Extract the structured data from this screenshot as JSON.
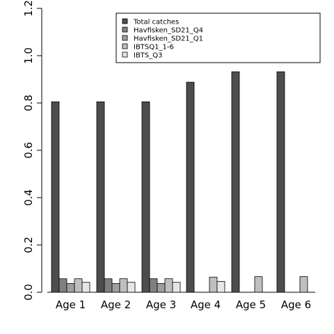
{
  "chart_data": {
    "type": "bar",
    "categories": [
      "Age 1",
      "Age 2",
      "Age 3",
      "Age 4",
      "Age 5",
      "Age 6"
    ],
    "series": [
      {
        "name": "Total catches",
        "color": "#4d4d4d",
        "values": [
          0.805,
          0.805,
          0.805,
          0.888,
          0.932,
          0.932
        ]
      },
      {
        "name": "Havfisken_SD21_Q4",
        "color": "#7f7f7f",
        "values": [
          0.057,
          0.057,
          0.057,
          0,
          0,
          0
        ]
      },
      {
        "name": "Havfisken_SD21_Q1",
        "color": "#9f9f9f",
        "values": [
          0.037,
          0.037,
          0.037,
          0,
          0,
          0
        ]
      },
      {
        "name": "IBTSQ1_1-6",
        "color": "#bfbfbf",
        "values": [
          0.057,
          0.057,
          0.057,
          0.064,
          0.066,
          0.066
        ]
      },
      {
        "name": "IBTS_Q3",
        "color": "#e6e6e6",
        "values": [
          0.042,
          0.042,
          0.042,
          0.046,
          0,
          0
        ]
      }
    ],
    "ylim": [
      0,
      1.2
    ],
    "yticks": [
      "0.0",
      "0.2",
      "0.4",
      "0.6",
      "0.8",
      "1.0",
      "1.2"
    ],
    "ytick_values": [
      0,
      0.2,
      0.4,
      0.6,
      0.8,
      1.0,
      1.2
    ],
    "title": "",
    "xlabel": "",
    "ylabel": "",
    "legend_position": "top-right",
    "grid": false
  }
}
